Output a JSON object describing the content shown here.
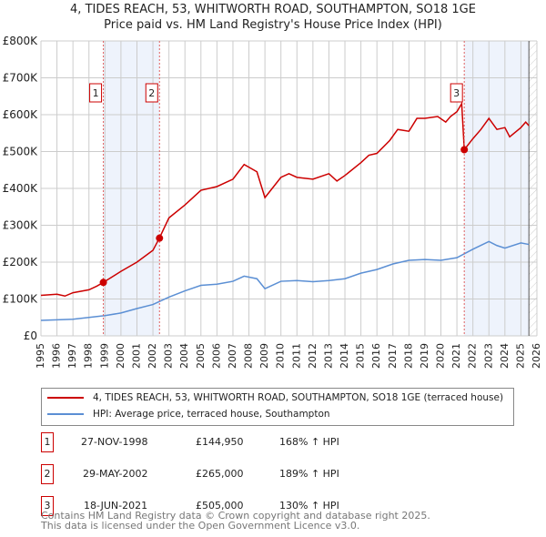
{
  "title_line1": "4, TIDES REACH, 53, WHITWORTH ROAD, SOUTHAMPTON, SO18 1GE",
  "title_line2": "Price paid vs. HM Land Registry's House Price Index (HPI)",
  "chart_data": {
    "type": "line",
    "xlim": [
      1995,
      2026
    ],
    "ylim": [
      0,
      800000
    ],
    "y_ticks": [
      0,
      100000,
      200000,
      300000,
      400000,
      500000,
      600000,
      700000,
      800000
    ],
    "y_tick_labels": [
      "£0",
      "£100K",
      "£200K",
      "£300K",
      "£400K",
      "£500K",
      "£600K",
      "£700K",
      "£800K"
    ],
    "x_ticks": [
      1995,
      1996,
      1997,
      1998,
      1999,
      2000,
      2001,
      2002,
      2003,
      2004,
      2005,
      2006,
      2007,
      2008,
      2009,
      2010,
      2011,
      2012,
      2013,
      2014,
      2015,
      2016,
      2017,
      2018,
      2019,
      2020,
      2021,
      2022,
      2023,
      2024,
      2025,
      2026
    ],
    "grid": true,
    "series": [
      {
        "name": "4, TIDES REACH, 53, WHITWORTH ROAD, SOUTHAMPTON, SO18 1GE (terraced house)",
        "color": "#cc0000",
        "points": [
          [
            1995,
            110
          ],
          [
            1996,
            113
          ],
          [
            1996.5,
            108
          ],
          [
            1997,
            117
          ],
          [
            1998,
            125
          ],
          [
            1998.5,
            135
          ],
          [
            1998.9,
            145
          ],
          [
            2000,
            175
          ],
          [
            2001,
            200
          ],
          [
            2002,
            232
          ],
          [
            2002.4,
            265
          ],
          [
            2003,
            320
          ],
          [
            2004,
            355
          ],
          [
            2005,
            395
          ],
          [
            2006,
            405
          ],
          [
            2007,
            425
          ],
          [
            2007.7,
            465
          ],
          [
            2008.5,
            445
          ],
          [
            2009,
            375
          ],
          [
            2010,
            430
          ],
          [
            2010.5,
            440
          ],
          [
            2011,
            430
          ],
          [
            2012,
            425
          ],
          [
            2013,
            440
          ],
          [
            2013.5,
            420
          ],
          [
            2014,
            435
          ],
          [
            2015,
            470
          ],
          [
            2015.5,
            490
          ],
          [
            2016,
            495
          ],
          [
            2016.8,
            530
          ],
          [
            2017.3,
            560
          ],
          [
            2018,
            555
          ],
          [
            2018.5,
            590
          ],
          [
            2019,
            590
          ],
          [
            2019.8,
            595
          ],
          [
            2020.3,
            580
          ],
          [
            2020.6,
            595
          ],
          [
            2021,
            608
          ],
          [
            2021.3,
            630
          ],
          [
            2021.46,
            505
          ],
          [
            2022,
            535
          ],
          [
            2022.5,
            560
          ],
          [
            2023,
            590
          ],
          [
            2023.5,
            560
          ],
          [
            2024,
            565
          ],
          [
            2024.3,
            540
          ],
          [
            2025,
            565
          ],
          [
            2025.3,
            580
          ],
          [
            2025.5,
            570
          ]
        ]
      },
      {
        "name": "HPI: Average price, terraced house, Southampton",
        "color": "#5b8fd4",
        "points": [
          [
            1995,
            42
          ],
          [
            1997,
            45
          ],
          [
            1998,
            50
          ],
          [
            1999,
            55
          ],
          [
            2000,
            62
          ],
          [
            2001,
            74
          ],
          [
            2002,
            85
          ],
          [
            2003,
            105
          ],
          [
            2004,
            122
          ],
          [
            2005,
            137
          ],
          [
            2006,
            140
          ],
          [
            2007,
            148
          ],
          [
            2007.7,
            162
          ],
          [
            2008.5,
            155
          ],
          [
            2009,
            128
          ],
          [
            2010,
            148
          ],
          [
            2011,
            150
          ],
          [
            2012,
            147
          ],
          [
            2013,
            150
          ],
          [
            2014,
            155
          ],
          [
            2015,
            170
          ],
          [
            2016,
            180
          ],
          [
            2017,
            195
          ],
          [
            2018,
            205
          ],
          [
            2019,
            207
          ],
          [
            2020,
            205
          ],
          [
            2021,
            212
          ],
          [
            2022,
            235
          ],
          [
            2023,
            256
          ],
          [
            2023.5,
            245
          ],
          [
            2024,
            238
          ],
          [
            2025,
            252
          ],
          [
            2025.5,
            248
          ]
        ]
      }
    ],
    "point_units": "thousands GBP",
    "sales": [
      {
        "label": "1",
        "x": 1998.9,
        "y": 144950
      },
      {
        "label": "2",
        "x": 2002.41,
        "y": 265000
      },
      {
        "label": "3",
        "x": 2021.46,
        "y": 505000
      }
    ],
    "legend_placement": "below"
  },
  "legend": [
    {
      "label": "4, TIDES REACH, 53, WHITWORTH ROAD, SOUTHAMPTON, SO18 1GE (terraced house)",
      "color": "#cc0000"
    },
    {
      "label": "HPI: Average price, terraced house, Southampton",
      "color": "#5b8fd4"
    }
  ],
  "transactions": [
    {
      "num": "1",
      "date": "27-NOV-1998",
      "price": "£144,950",
      "hpi": "168% ↑ HPI"
    },
    {
      "num": "2",
      "date": "29-MAY-2002",
      "price": "£265,000",
      "hpi": "189% ↑ HPI"
    },
    {
      "num": "3",
      "date": "18-JUN-2021",
      "price": "£505,000",
      "hpi": "130% ↑ HPI"
    }
  ],
  "footer_line1": "Contains HM Land Registry data © Crown copyright and database right 2025.",
  "footer_line2": "This data is licensed under the Open Government Licence v3.0."
}
